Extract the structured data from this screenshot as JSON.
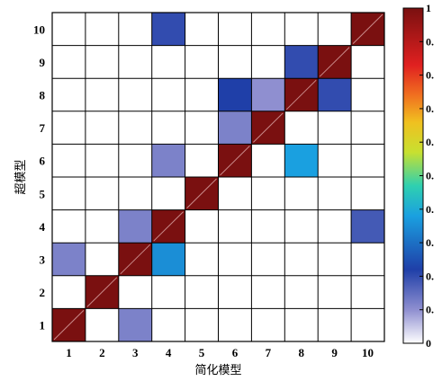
{
  "chart_data": {
    "type": "heatmap",
    "xlabel": "简化模型",
    "ylabel": "超模型",
    "x_categories": [
      "1",
      "2",
      "3",
      "4",
      "5",
      "6",
      "7",
      "8",
      "9",
      "10"
    ],
    "y_categories": [
      "1",
      "2",
      "3",
      "4",
      "5",
      "6",
      "7",
      "8",
      "9",
      "10"
    ],
    "colorbar": {
      "range": [
        0,
        1
      ],
      "tick_labels": [
        "0",
        "0.",
        "0.",
        "0.",
        "0.",
        "0.",
        "0.",
        "0.",
        "0.",
        "0.",
        "1"
      ],
      "colormap": "white-blue-cyan-yellow-orange-red-darkred"
    },
    "grid": true,
    "rows": [
      {
        "y": "1",
        "values": [
          1,
          0,
          0.12,
          0,
          0,
          0,
          0,
          0,
          0,
          0
        ]
      },
      {
        "y": "2",
        "values": [
          0,
          1,
          0,
          0,
          0,
          0,
          0,
          0,
          0,
          0
        ]
      },
      {
        "y": "3",
        "values": [
          0.12,
          0,
          1,
          0.35,
          0,
          0,
          0,
          0,
          0,
          0
        ]
      },
      {
        "y": "4",
        "values": [
          0,
          0,
          0.12,
          1,
          0,
          0,
          0,
          0,
          0,
          0.18
        ]
      },
      {
        "y": "5",
        "values": [
          0,
          0,
          0,
          0,
          1,
          0,
          0,
          0,
          0,
          0
        ]
      },
      {
        "y": "6",
        "values": [
          0,
          0,
          0,
          0.12,
          0,
          1,
          0,
          0.38,
          0,
          0
        ]
      },
      {
        "y": "7",
        "values": [
          0,
          0,
          0,
          0,
          0,
          0.12,
          1,
          0,
          0,
          0
        ]
      },
      {
        "y": "8",
        "values": [
          0,
          0,
          0,
          0,
          0,
          0.22,
          0.1,
          1,
          0.2,
          0
        ]
      },
      {
        "y": "9",
        "values": [
          0,
          0,
          0,
          0,
          0,
          0,
          0,
          0.2,
          1,
          0
        ]
      },
      {
        "y": "10",
        "values": [
          0,
          0,
          0,
          0.2,
          0,
          0,
          0,
          0,
          0,
          1
        ]
      }
    ]
  }
}
